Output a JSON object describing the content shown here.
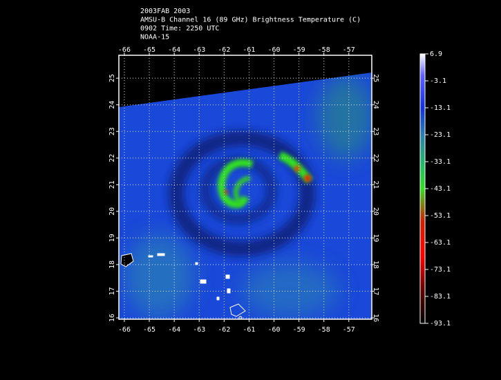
{
  "header": {
    "lines": [
      "2003FAB 2003",
      "AMSU-B Channel 16 (89 GHz) Brightness Temperature (C)",
      "0902 Time: 2250 UTC",
      "NOAA-15"
    ]
  },
  "map": {
    "xlim": [
      -66.22,
      -56.08
    ],
    "ylim": [
      15.95,
      25.86
    ],
    "xticks": [
      -66,
      -65,
      -64,
      -63,
      -62,
      -61,
      -60,
      -59,
      -58,
      -57
    ],
    "yticks": [
      16,
      17,
      18,
      19,
      20,
      21,
      22,
      23,
      24,
      25
    ],
    "grid": true
  },
  "colorbar": {
    "clim": [
      -93.1,
      6.9
    ],
    "ticks": [
      6.9,
      -3.1,
      -13.1,
      -23.1,
      -33.1,
      -43.1,
      -53.1,
      -63.1,
      -73.1,
      -83.1,
      -93.1
    ]
  }
}
